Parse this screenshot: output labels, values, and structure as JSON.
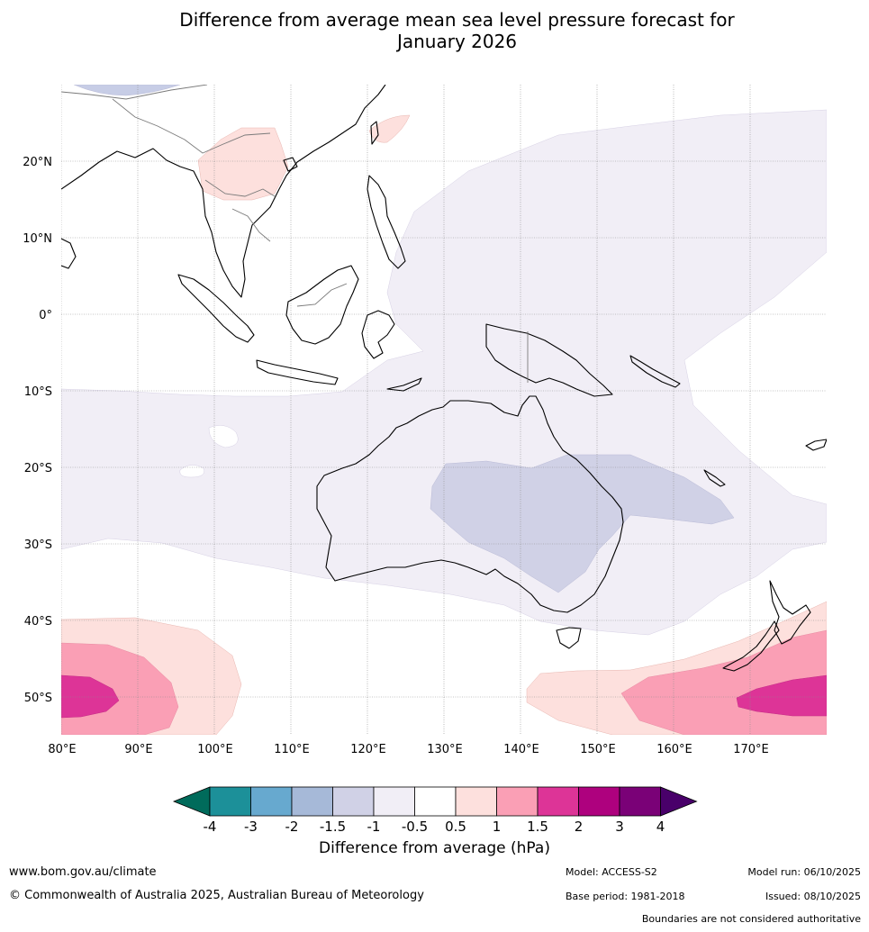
{
  "title": {
    "line1": "Difference from average mean sea level pressure forecast for",
    "line2": "January 2026"
  },
  "map": {
    "lat_labels": [
      "20°N",
      "10°N",
      "0°",
      "10°S",
      "20°S",
      "30°S",
      "40°S",
      "50°S"
    ],
    "lon_labels": [
      "80°E",
      "90°E",
      "100°E",
      "110°E",
      "120°E",
      "130°E",
      "140°E",
      "150°E",
      "160°E",
      "170°E"
    ],
    "lon_range": [
      80,
      180
    ],
    "lat_range": [
      -55,
      30
    ]
  },
  "colorbar": {
    "title": "Difference from average (hPa)",
    "ticks": [
      "-4",
      "-3",
      "-2",
      "-1.5",
      "-1",
      "-0.5",
      "0.5",
      "1",
      "1.5",
      "2",
      "3",
      "4"
    ],
    "colors": [
      "#006b5b",
      "#1c9099",
      "#67a9cf",
      "#a6b9d8",
      "#d0d1e6",
      "#f1eef6",
      "#ffffff",
      "#fde0dd",
      "#fa9fb5",
      "#dd3497",
      "#ae017e",
      "#7a0177",
      "#49006a"
    ]
  },
  "footer": {
    "website": "www.bom.gov.au/climate",
    "copyright": "© Commonwealth of Australia 2025, Australian Bureau of Meteorology",
    "model": "Model: ACCESS-S2",
    "model_run": "Model run: 06/10/2025",
    "base_period": "Base period: 1981-2018",
    "issued": "Issued: 08/10/2025",
    "disclaimer": "Boundaries are not considered authoritative"
  }
}
